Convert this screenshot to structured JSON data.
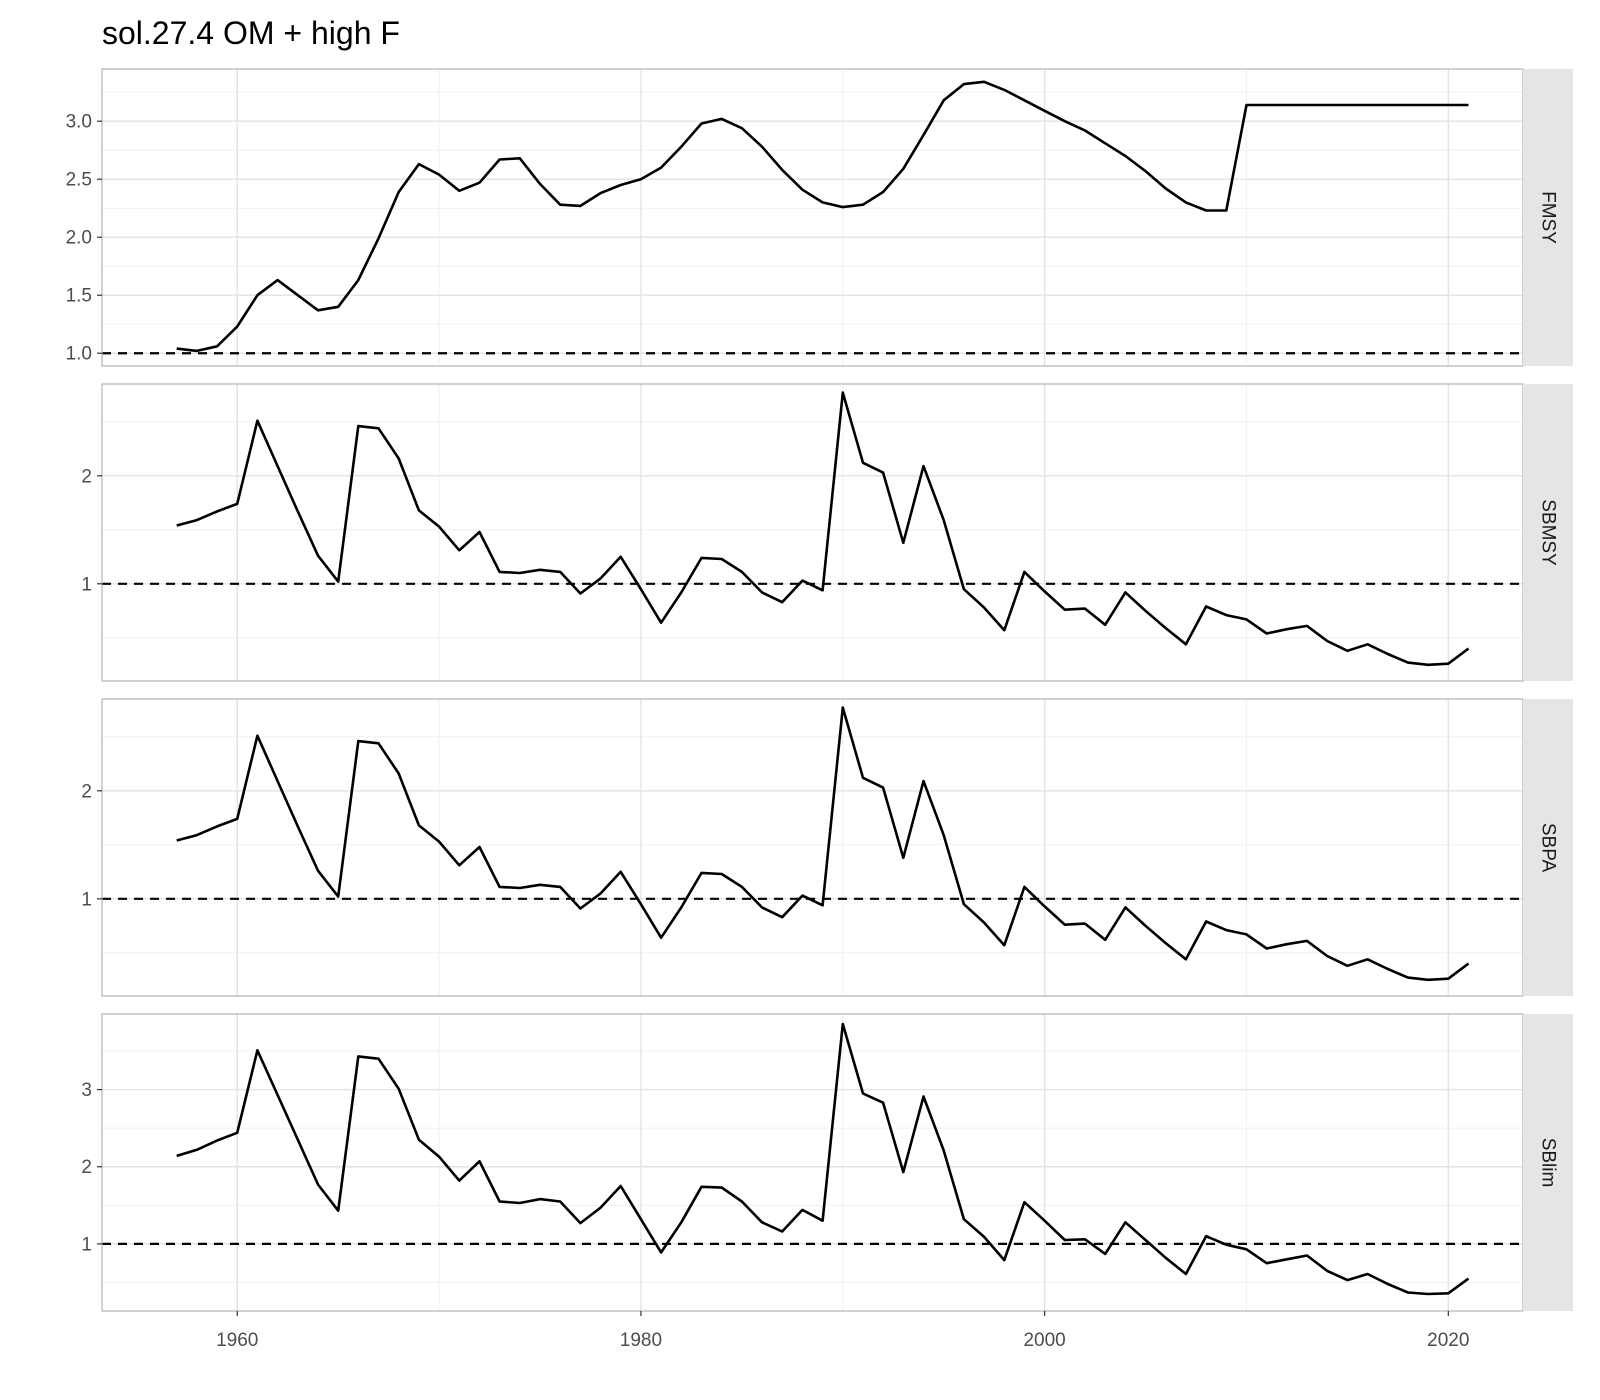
{
  "chart_data": {
    "type": "line",
    "title": "sol.27.4 OM + high F",
    "xlabel": "",
    "ylabel": "",
    "xlim": [
      1953.3,
      2023.7
    ],
    "x_ticks": [
      1960,
      1980,
      2000,
      2020
    ],
    "x_tick_labels": [
      "1960",
      "1980",
      "2000",
      "2020"
    ],
    "grid": true,
    "reference_line": 1,
    "x": [
      1957,
      1958,
      1959,
      1960,
      1961,
      1962,
      1963,
      1964,
      1965,
      1966,
      1967,
      1968,
      1969,
      1970,
      1971,
      1972,
      1973,
      1974,
      1975,
      1976,
      1977,
      1978,
      1979,
      1980,
      1981,
      1982,
      1983,
      1984,
      1985,
      1986,
      1987,
      1988,
      1989,
      1990,
      1991,
      1992,
      1993,
      1994,
      1995,
      1996,
      1997,
      1998,
      1999,
      2000,
      2001,
      2002,
      2003,
      2004,
      2005,
      2006,
      2007,
      2008,
      2009,
      2010,
      2011,
      2012,
      2013,
      2014,
      2015,
      2016,
      2017,
      2018,
      2019,
      2020,
      2021
    ],
    "panels": [
      {
        "name": "FMSY",
        "ylim": [
          0.89,
          3.45
        ],
        "y_ticks": [
          1.0,
          1.5,
          2.0,
          2.5,
          3.0
        ],
        "y_tick_labels": [
          "1.0",
          "1.5",
          "2.0",
          "2.5",
          "3.0"
        ],
        "values": [
          1.04,
          1.02,
          1.06,
          1.23,
          1.5,
          1.63,
          1.5,
          1.37,
          1.4,
          1.63,
          1.99,
          2.39,
          2.63,
          2.54,
          2.4,
          2.47,
          2.67,
          2.68,
          2.46,
          2.28,
          2.27,
          2.38,
          2.45,
          2.5,
          2.6,
          2.78,
          2.98,
          3.02,
          2.94,
          2.78,
          2.58,
          2.41,
          2.3,
          2.26,
          2.28,
          2.39,
          2.59,
          2.88,
          3.18,
          3.32,
          3.34,
          3.27,
          3.18,
          3.09,
          3.0,
          2.92,
          2.81,
          2.7,
          2.57,
          2.42,
          2.3,
          2.23,
          2.23,
          3.14,
          3.14,
          3.14,
          3.14,
          3.14,
          3.14,
          3.14,
          3.14,
          3.14,
          3.14,
          3.14,
          3.14
        ]
      },
      {
        "name": "SBMSY",
        "ylim": [
          0.1,
          2.85
        ],
        "y_ticks": [
          1,
          2
        ],
        "y_tick_labels": [
          "1",
          "2"
        ],
        "values": [
          1.54,
          1.59,
          1.67,
          1.74,
          2.51,
          2.09,
          1.67,
          1.26,
          1.02,
          2.46,
          2.44,
          2.16,
          1.68,
          1.53,
          1.31,
          1.48,
          1.11,
          1.1,
          1.13,
          1.11,
          0.91,
          1.05,
          1.25,
          0.95,
          0.64,
          0.92,
          1.24,
          1.23,
          1.11,
          0.92,
          0.83,
          1.03,
          0.94,
          2.77,
          2.12,
          2.03,
          1.38,
          2.09,
          1.59,
          0.95,
          0.78,
          0.57,
          1.11,
          0.93,
          0.76,
          0.77,
          0.62,
          0.92,
          0.75,
          0.59,
          0.44,
          0.79,
          0.71,
          0.67,
          0.54,
          0.58,
          0.61,
          0.47,
          0.38,
          0.44,
          0.35,
          0.27,
          0.25,
          0.26,
          0.4
        ]
      },
      {
        "name": "SBPA",
        "ylim": [
          0.1,
          2.85
        ],
        "y_ticks": [
          1,
          2
        ],
        "y_tick_labels": [
          "1",
          "2"
        ],
        "values": [
          1.54,
          1.59,
          1.67,
          1.74,
          2.51,
          2.09,
          1.67,
          1.26,
          1.02,
          2.46,
          2.44,
          2.16,
          1.68,
          1.53,
          1.31,
          1.48,
          1.11,
          1.1,
          1.13,
          1.11,
          0.91,
          1.05,
          1.25,
          0.95,
          0.64,
          0.92,
          1.24,
          1.23,
          1.11,
          0.92,
          0.83,
          1.03,
          0.94,
          2.77,
          2.12,
          2.03,
          1.38,
          2.09,
          1.59,
          0.95,
          0.78,
          0.57,
          1.11,
          0.93,
          0.76,
          0.77,
          0.62,
          0.92,
          0.75,
          0.59,
          0.44,
          0.79,
          0.71,
          0.67,
          0.54,
          0.58,
          0.61,
          0.47,
          0.38,
          0.44,
          0.35,
          0.27,
          0.25,
          0.26,
          0.4
        ]
      },
      {
        "name": "SBlim",
        "ylim": [
          0.13,
          3.98
        ],
        "y_ticks": [
          1,
          2,
          3
        ],
        "y_tick_labels": [
          "1",
          "2",
          "3"
        ],
        "values": [
          2.14,
          2.22,
          2.34,
          2.44,
          3.51,
          2.93,
          2.35,
          1.77,
          1.43,
          3.43,
          3.4,
          3.01,
          2.35,
          2.13,
          1.82,
          2.07,
          1.55,
          1.53,
          1.58,
          1.55,
          1.27,
          1.47,
          1.75,
          1.32,
          0.89,
          1.28,
          1.74,
          1.73,
          1.55,
          1.28,
          1.16,
          1.44,
          1.3,
          3.85,
          2.95,
          2.83,
          1.93,
          2.91,
          2.21,
          1.32,
          1.09,
          0.79,
          1.54,
          1.3,
          1.05,
          1.06,
          0.87,
          1.28,
          1.05,
          0.82,
          0.61,
          1.1,
          0.99,
          0.93,
          0.75,
          0.8,
          0.85,
          0.65,
          0.53,
          0.61,
          0.48,
          0.37,
          0.35,
          0.36,
          0.55
        ]
      }
    ]
  }
}
